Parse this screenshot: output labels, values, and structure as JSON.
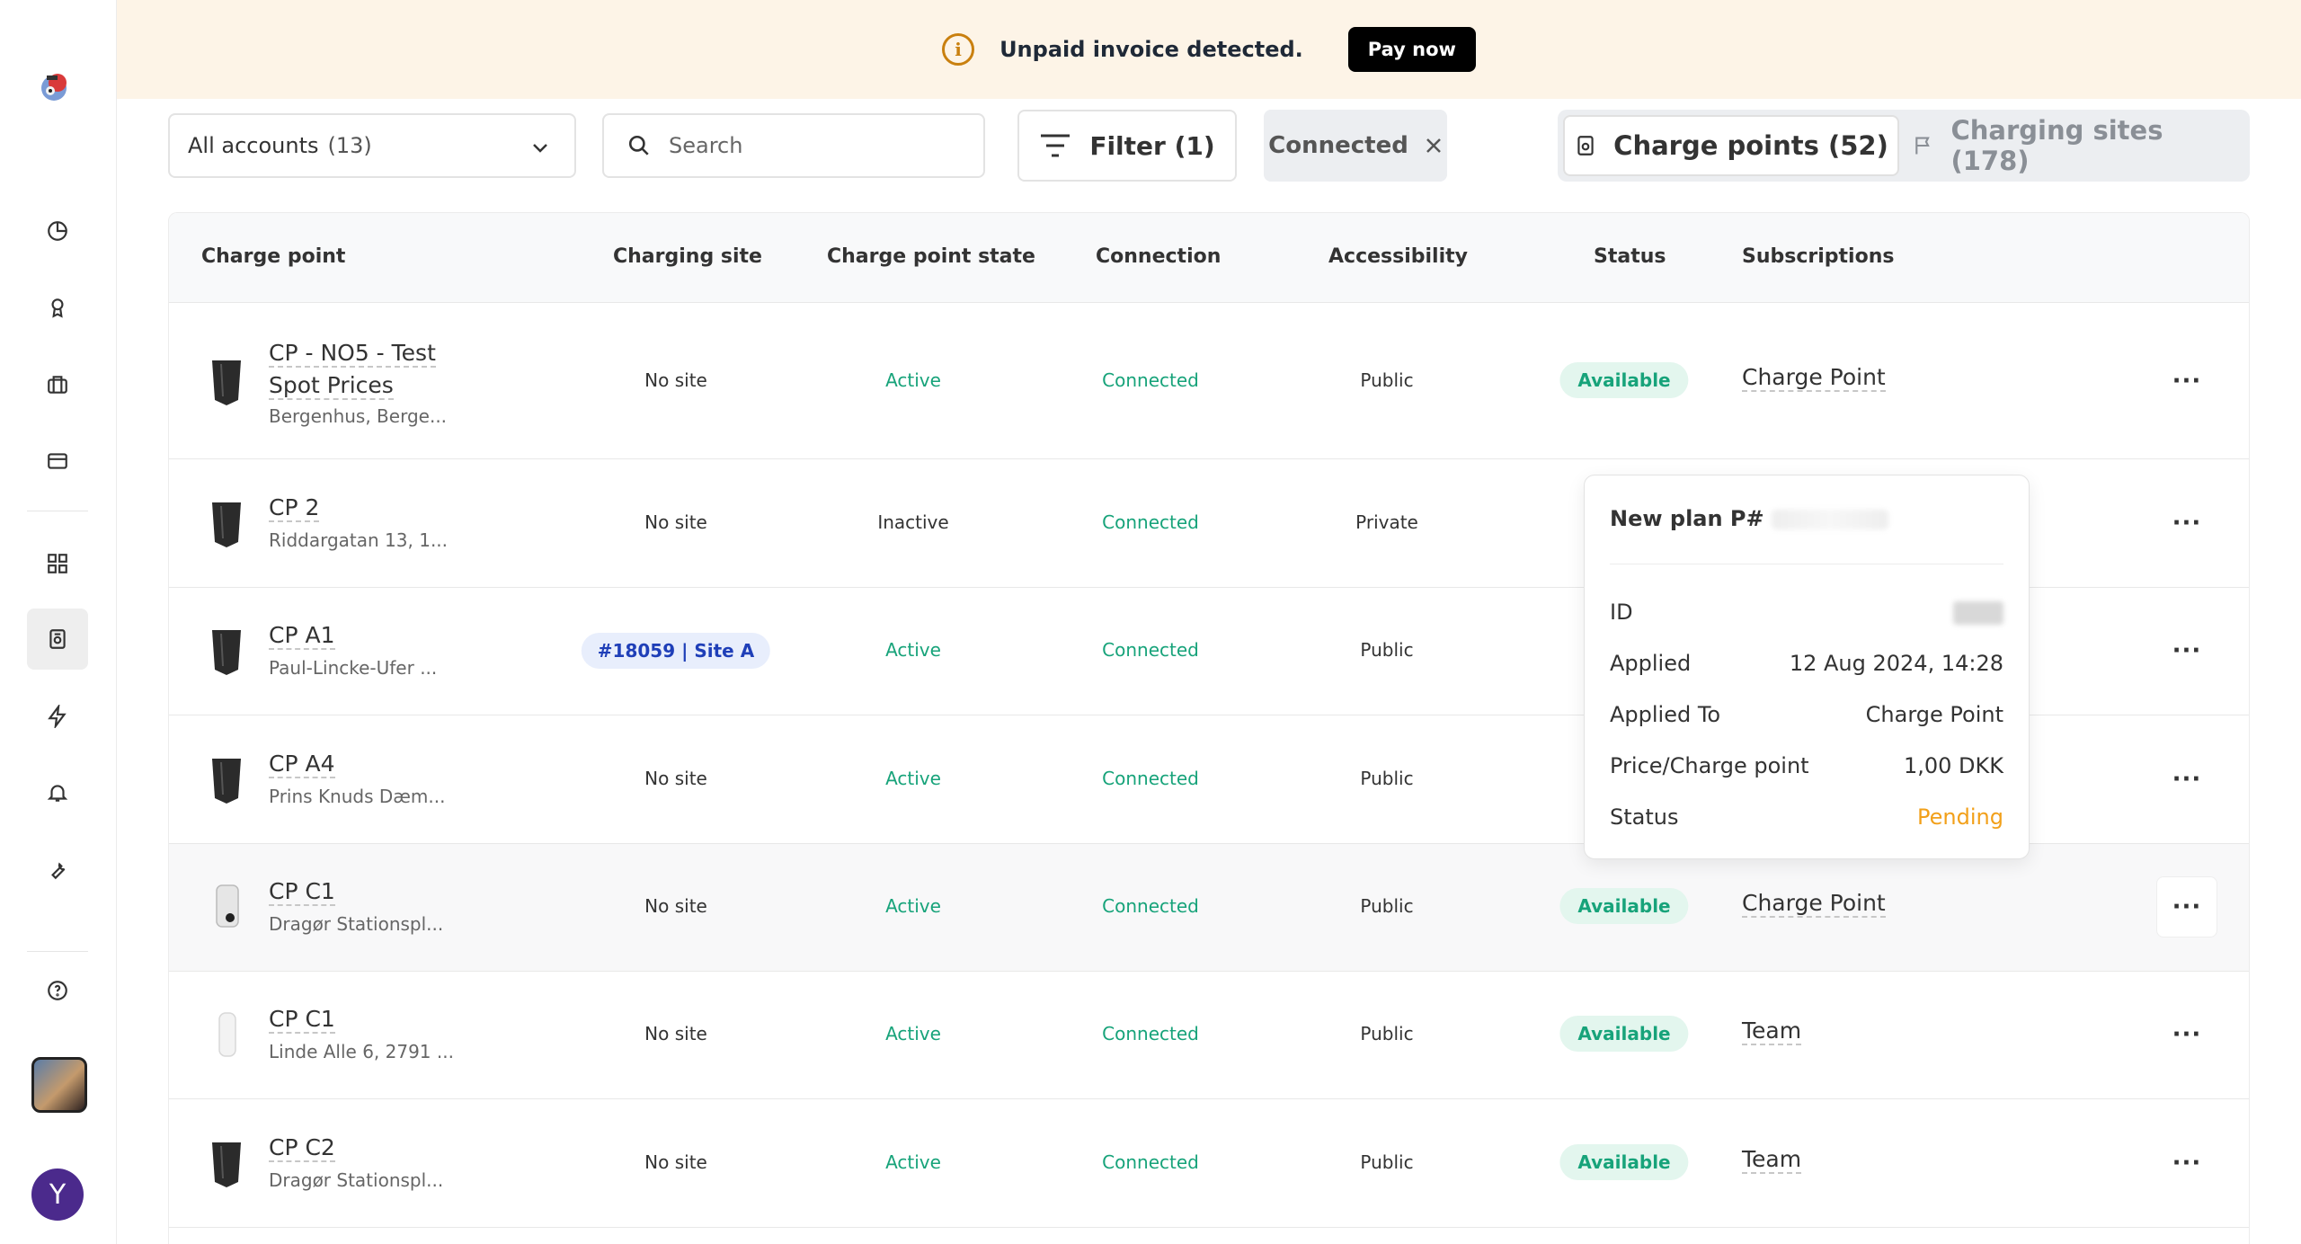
{
  "banner": {
    "message": "Unpaid invoice detected.",
    "pay_label": "Pay now"
  },
  "toolbar": {
    "accounts_label": "All accounts",
    "accounts_count": "(13)",
    "search_placeholder": "Search",
    "filter_label": "Filter (1)",
    "active_chip": "Connected"
  },
  "tabs": {
    "charge_points": "Charge points (52)",
    "charging_sites": "Charging sites (178)"
  },
  "table": {
    "headers": {
      "charge_point": "Charge point",
      "charging_site": "Charging site",
      "state": "Charge point state",
      "connection": "Connection",
      "accessibility": "Accessibility",
      "status": "Status",
      "subscriptions": "Subscriptions"
    },
    "rows": [
      {
        "name1": "CP - NO5 - Test",
        "name2": "Spot Prices",
        "address": "Bergenhus, Berge...",
        "site": "No site",
        "state": "Active",
        "connection": "Connected",
        "accessibility": "Public",
        "status": "Available",
        "subscription": "Charge Point"
      },
      {
        "name1": "CP 2",
        "address": "Riddargatan 13, 1...",
        "site": "No site",
        "state": "Inactive",
        "connection": "Connected",
        "accessibility": "Private"
      },
      {
        "name1": "CP A1",
        "address": "Paul-Lincke-Ufer ...",
        "site": "#18059 | Site A",
        "state": "Active",
        "connection": "Connected",
        "accessibility": "Public"
      },
      {
        "name1": "CP A4",
        "address": "Prins Knuds Dæm...",
        "site": "No site",
        "state": "Active",
        "connection": "Connected",
        "accessibility": "Public"
      },
      {
        "name1": "CP C1",
        "address": "Dragør Stationspl...",
        "site": "No site",
        "state": "Active",
        "connection": "Connected",
        "accessibility": "Public",
        "status": "Available",
        "subscription": "Charge Point"
      },
      {
        "name1": "CP C1",
        "address": "Linde Alle 6, 2791 ...",
        "site": "No site",
        "state": "Active",
        "connection": "Connected",
        "accessibility": "Public",
        "status": "Available",
        "subscription": "Team"
      },
      {
        "name1": "CP C2",
        "address": "Dragør Stationspl...",
        "site": "No site",
        "state": "Active",
        "connection": "Connected",
        "accessibility": "Public",
        "status": "Available",
        "subscription": "Team"
      }
    ],
    "more_glyph": "···"
  },
  "popover": {
    "title": "New plan P#",
    "rows": [
      {
        "key": "ID",
        "value": ""
      },
      {
        "key": "Applied",
        "value": "12 Aug 2024, 14:28"
      },
      {
        "key": "Applied To",
        "value": "Charge Point"
      },
      {
        "key": "Price/Charge point",
        "value": "1,00 DKK"
      },
      {
        "key": "Status",
        "value": "Pending"
      }
    ]
  },
  "user": {
    "initial": "Y"
  },
  "colors": {
    "banner_bg": "#fdf4e7",
    "accent_green": "#17a37a",
    "pending_orange": "#f2a01a",
    "site_chip_blue": "#1f3fb8",
    "avatar_purple": "#4b2a8c"
  },
  "icons": [
    "logo-icon",
    "dashboard-icon",
    "badge-icon",
    "briefcase-icon",
    "card-icon",
    "grid-icon",
    "charge-point-icon",
    "bolt-icon",
    "bell-icon",
    "wrench-icon",
    "help-icon",
    "info-icon",
    "chevron-down-icon",
    "search-icon",
    "filter-icon",
    "close-icon",
    "flag-icon",
    "more-icon"
  ]
}
